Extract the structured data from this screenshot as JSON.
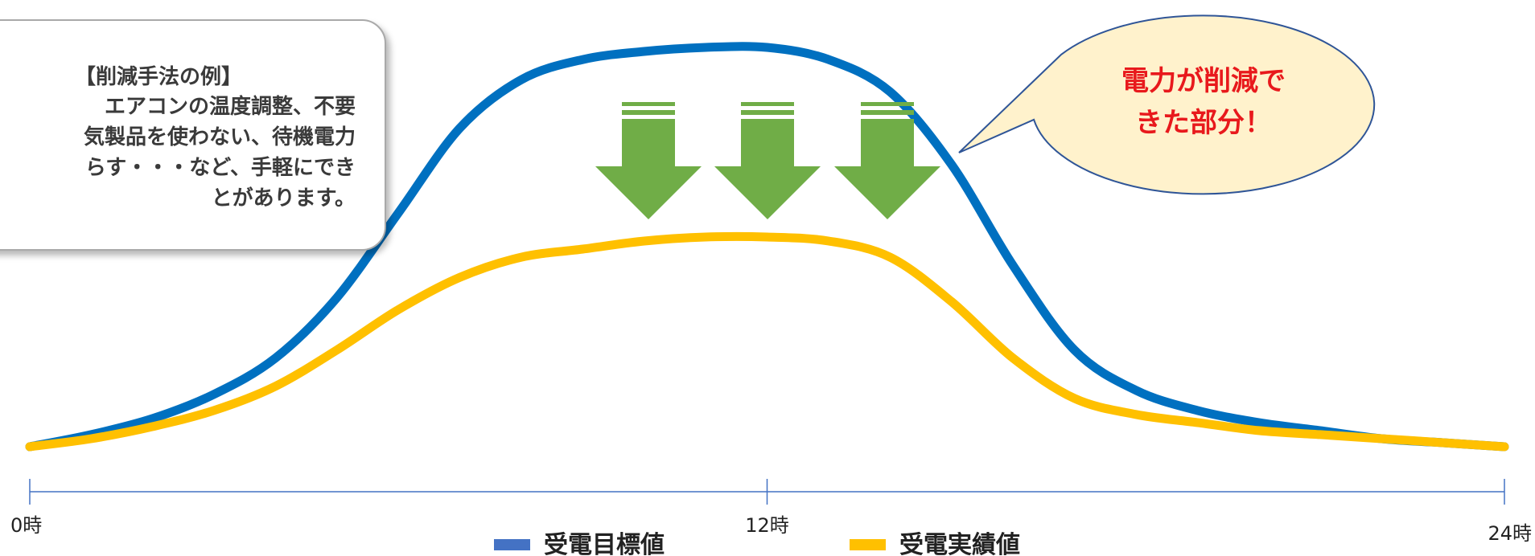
{
  "info_box": {
    "title": "【削減手法の例】",
    "lines": [
      "エアコンの温度調整、不要",
      "気製品を使わない、待機電力",
      "らす・・・など、手軽にでき",
      "とがあります。"
    ]
  },
  "callout": {
    "lines": [
      "電力が削減で",
      "きた部分！"
    ]
  },
  "colors": {
    "target": "#0070c0",
    "actual": "#ffc000",
    "arrow": "#70ad47",
    "callout_fill": "#fff2cc",
    "callout_border": "#2f5597",
    "callout_text": "#e8191c",
    "axis": "#4472c4",
    "legend_target": "#4472c4"
  },
  "chart_data": {
    "type": "line",
    "xlim": [
      0,
      24
    ],
    "ylim": [
      0,
      100
    ],
    "xticks": [
      {
        "value": 0,
        "label": "0時"
      },
      {
        "value": 12,
        "label": "12時"
      },
      {
        "value": 24,
        "label": "24時"
      }
    ],
    "series": [
      {
        "name": "受電目標値",
        "x": [
          0,
          1,
          2,
          3,
          4,
          5,
          6,
          7,
          8,
          9,
          10,
          11,
          12,
          13,
          14,
          15,
          16,
          17,
          18,
          19,
          20,
          21,
          22,
          23,
          24
        ],
        "values": [
          0,
          3,
          7,
          13,
          22,
          37,
          58,
          79,
          91,
          96,
          98,
          99,
          99,
          96,
          88,
          70,
          45,
          24,
          14,
          9,
          6,
          4,
          2,
          1,
          0
        ]
      },
      {
        "name": "受電実績値",
        "x": [
          0,
          1,
          2,
          3,
          4,
          5,
          6,
          7,
          8,
          9,
          10,
          11,
          12,
          13,
          14,
          15,
          16,
          17,
          18,
          19,
          20,
          21,
          22,
          23,
          24
        ],
        "values": [
          0,
          2,
          5,
          9,
          15,
          24,
          34,
          42,
          47,
          49,
          51,
          52,
          52,
          51,
          47,
          36,
          22,
          12,
          8,
          6,
          4,
          3,
          2,
          1,
          0
        ]
      }
    ],
    "legend": {
      "position": "bottom",
      "items": [
        "受電目標値",
        "受電実績値"
      ]
    }
  }
}
